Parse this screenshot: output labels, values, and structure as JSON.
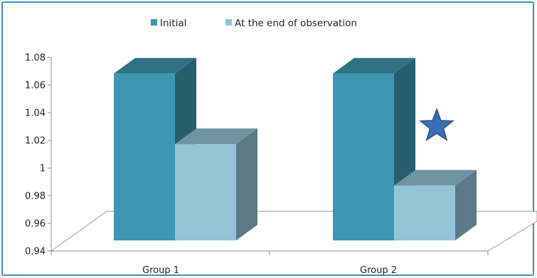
{
  "chart_data": {
    "type": "bar",
    "title": "",
    "xlabel": "",
    "ylabel": "",
    "categories": [
      "Group 1",
      "Group 2"
    ],
    "series": [
      {
        "name": "Initial",
        "values": [
          1.074,
          1.074
        ],
        "color": "#3e97b1"
      },
      {
        "name": "At the end of observation",
        "values": [
          1.023,
          0.993
        ],
        "color": "#93c5d7"
      }
    ],
    "ylim": [
      0.94,
      1.08
    ],
    "y_ticks": [
      "0.94",
      "0.96",
      "0.98",
      "1",
      "1.02",
      "1.04",
      "1.06",
      "1.08"
    ],
    "y_tick_values": [
      0.94,
      0.96,
      0.98,
      1,
      1.02,
      1.04,
      1.06,
      1.08
    ],
    "legend_position": "top",
    "grid": false,
    "style": "3d-clustered-column",
    "annotations": [
      {
        "type": "star-icon",
        "category": "Group 2",
        "series": "At the end of observation",
        "color": "#3b6fb5"
      }
    ]
  }
}
